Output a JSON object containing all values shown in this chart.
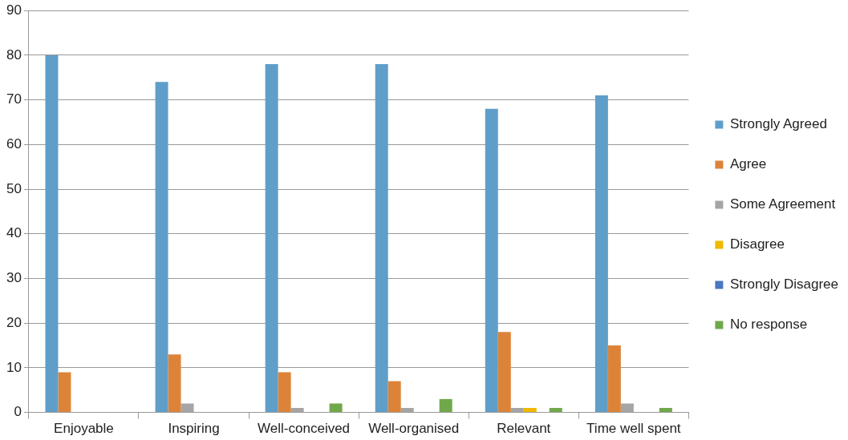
{
  "chart_data": {
    "type": "bar",
    "categories": [
      "Enjoyable",
      "Inspiring",
      "Well-conceived",
      "Well-organised",
      "Relevant",
      "Time well spent"
    ],
    "series": [
      {
        "name": "Strongly Agreed",
        "color": "#5f9ec9",
        "values": [
          80,
          74,
          78,
          78,
          68,
          71
        ]
      },
      {
        "name": "Agree",
        "color": "#dd8338",
        "values": [
          9,
          13,
          9,
          7,
          18,
          15
        ]
      },
      {
        "name": "Some Agreement",
        "color": "#a5a5a5",
        "values": [
          0,
          2,
          1,
          1,
          1,
          2
        ]
      },
      {
        "name": "Disagree",
        "color": "#f0b800",
        "values": [
          0,
          0,
          0,
          0,
          1,
          0
        ]
      },
      {
        "name": "Strongly Disagree",
        "color": "#4a77c0",
        "values": [
          0,
          0,
          0,
          0,
          0,
          0
        ]
      },
      {
        "name": "No response",
        "color": "#70a84c",
        "values": [
          0,
          0,
          2,
          3,
          1,
          1
        ]
      }
    ],
    "ylim": [
      0,
      90
    ],
    "yticks": [
      0,
      10,
      20,
      30,
      40,
      50,
      60,
      70,
      80,
      90
    ],
    "grid": "y",
    "legend": "right"
  }
}
